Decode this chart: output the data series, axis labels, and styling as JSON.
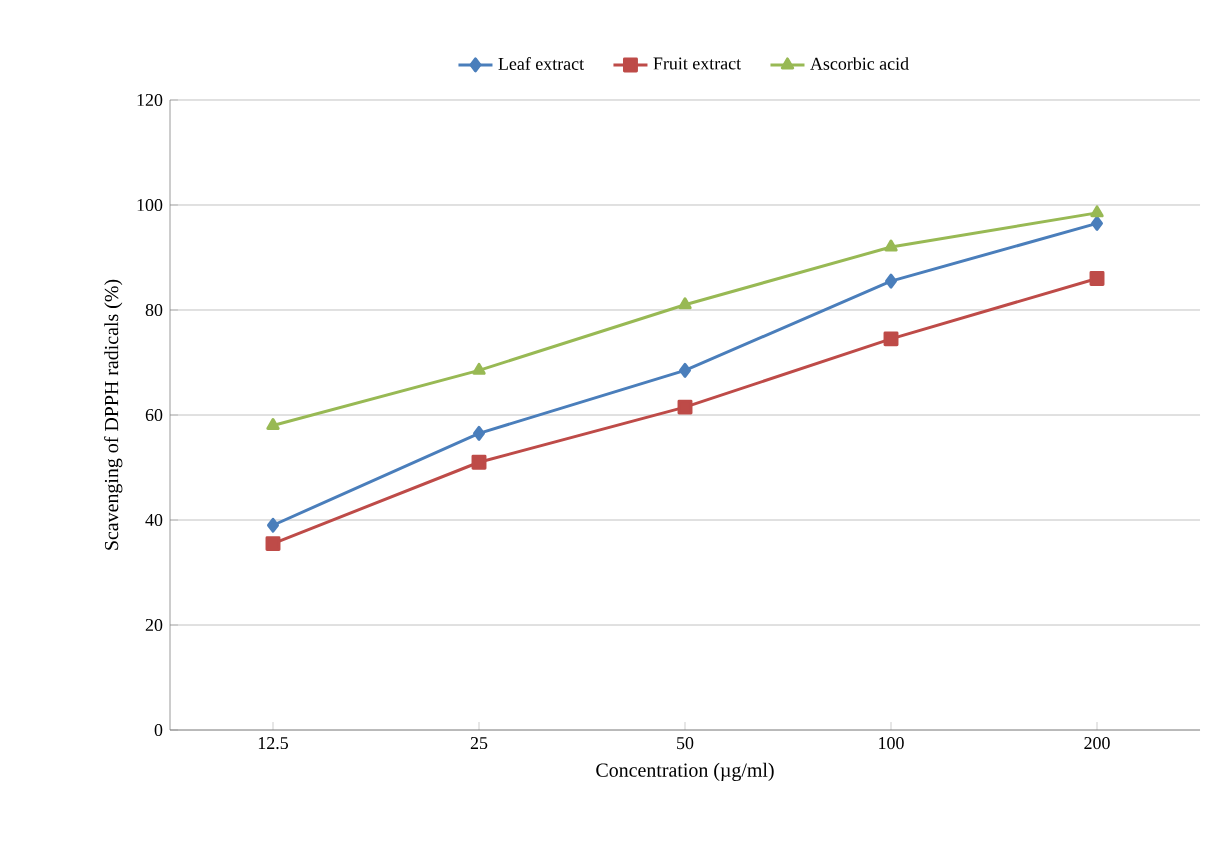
{
  "chart_data": {
    "type": "line",
    "xlabel": "Concentration (µg/ml)",
    "ylabel": "Scavenging of DPPH radicals (%)",
    "categories": [
      "12.5",
      "25",
      "50",
      "100",
      "200"
    ],
    "series": [
      {
        "name": "Leaf extract",
        "color": "#4a7ebb",
        "marker": "diamond",
        "values": [
          39,
          56.5,
          68.5,
          85.5,
          96.5
        ]
      },
      {
        "name": "Fruit extract",
        "color": "#be4b48",
        "marker": "square",
        "values": [
          35.5,
          51,
          61.5,
          74.5,
          86
        ]
      },
      {
        "name": "Ascorbic acid",
        "color": "#98b954",
        "marker": "triangle",
        "values": [
          58,
          68.5,
          81,
          92,
          98.5
        ]
      }
    ],
    "ylim": [
      0,
      120
    ],
    "yticks": [
      0,
      20,
      40,
      60,
      80,
      100,
      120
    ],
    "grid": "y",
    "legend": "top",
    "line_style": "solid"
  }
}
